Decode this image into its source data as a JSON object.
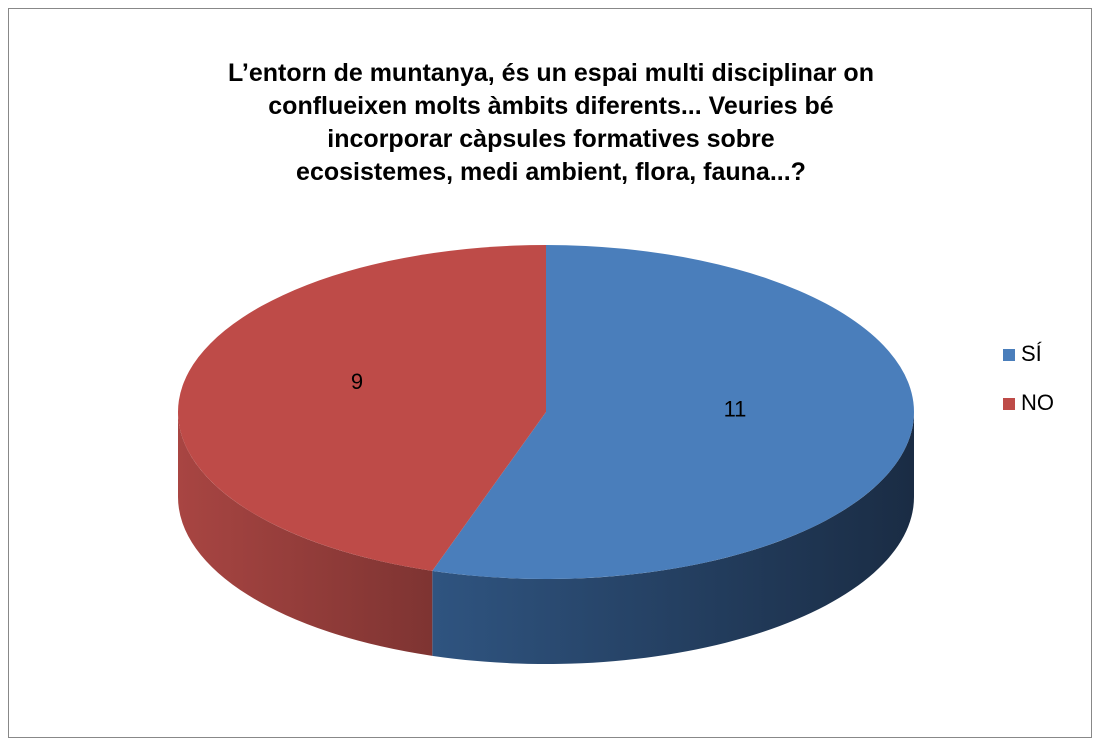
{
  "chart_data": {
    "type": "pie",
    "title": "L’entorn de muntanya, és un espai multi disciplinar on\nconflueixen molts àmbits diferents... Veuries bé\nincorporar càpsules formatives sobre\necosistemes, medi ambient, flora, fauna...?",
    "categories": [
      "SÍ",
      "NO"
    ],
    "values": [
      11,
      9
    ],
    "colors": [
      "#4a7ebb",
      "#be4b48"
    ],
    "legend": "right",
    "three_d": true
  }
}
